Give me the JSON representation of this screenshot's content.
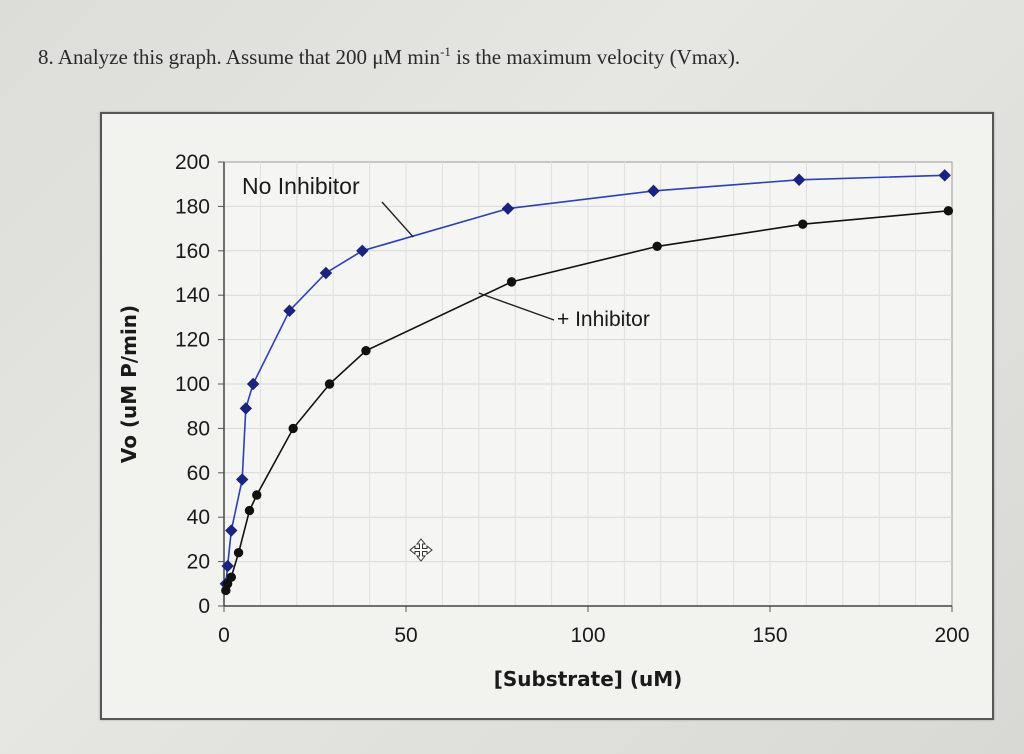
{
  "question": {
    "number": "8.",
    "text_before": "Analyze this graph. Assume that 200 μM min",
    "superscript": "-1",
    "text_after": " is the maximum velocity (Vmax)."
  },
  "cursor_icon": "move-cursor-icon",
  "chart_data": {
    "type": "line",
    "title": "",
    "xlabel": "[Substrate] (uM)",
    "ylabel": "Vo (uM P/min)",
    "xlim": [
      0,
      200
    ],
    "ylim": [
      0,
      200
    ],
    "x_ticks": [
      "0",
      "50",
      "100",
      "150",
      "200"
    ],
    "y_ticks": [
      "0",
      "20",
      "40",
      "60",
      "80",
      "100",
      "120",
      "140",
      "160",
      "180",
      "200"
    ],
    "grid": true,
    "series": [
      {
        "name": "No Inhibitor",
        "color": "#2b3fb8",
        "marker": "diamond",
        "x": [
          0.5,
          1,
          2,
          5,
          6,
          8,
          18,
          28,
          38,
          78,
          118,
          158,
          198
        ],
        "y": [
          10,
          18,
          34,
          57,
          89,
          100,
          133,
          150,
          160,
          179,
          187,
          192,
          194
        ]
      },
      {
        "name": "+ Inhibitor",
        "color": "#111111",
        "marker": "circle",
        "x": [
          0.5,
          1,
          2,
          4,
          7,
          9,
          19,
          29,
          39,
          79,
          119,
          159,
          199
        ],
        "y": [
          7,
          10,
          13,
          24,
          43,
          50,
          80,
          100,
          115,
          146,
          162,
          172,
          178
        ]
      }
    ],
    "annotations": [
      {
        "text": "No Inhibitor",
        "series": 0
      },
      {
        "text": "+ Inhibitor",
        "series": 1
      }
    ]
  }
}
